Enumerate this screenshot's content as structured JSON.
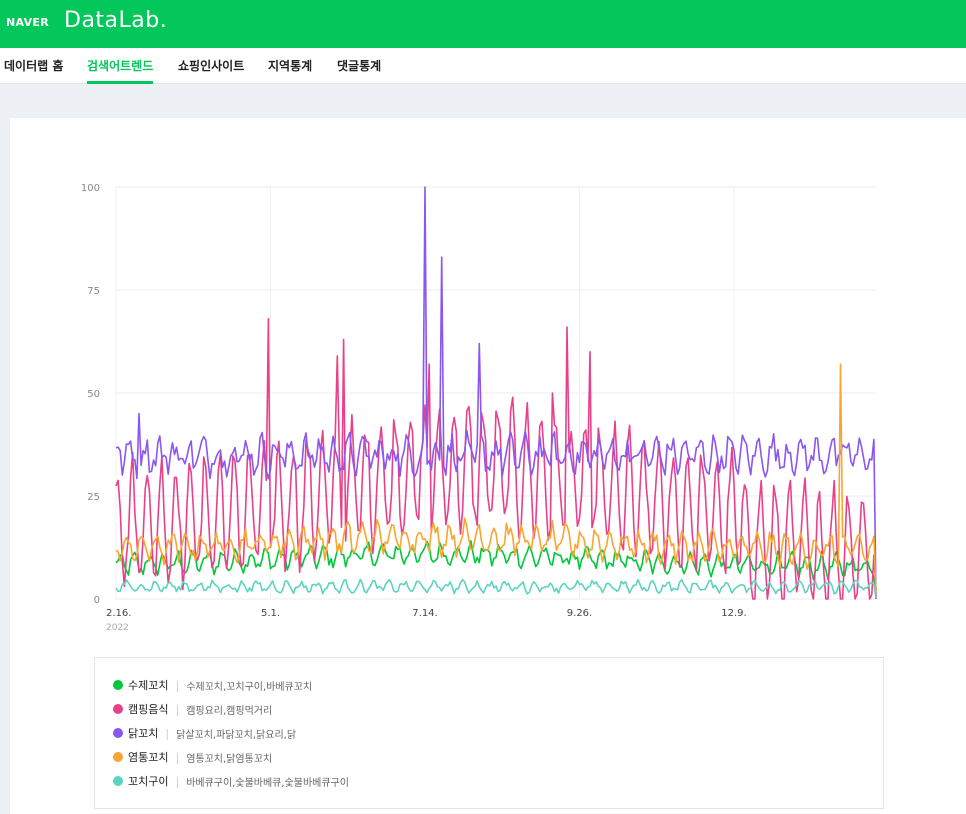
{
  "header": {
    "brand": "NAVER",
    "product": "DataLab."
  },
  "nav": {
    "items": [
      {
        "label": "데이터랩 홈",
        "active": false
      },
      {
        "label": "검색어트렌드",
        "active": true
      },
      {
        "label": "쇼핑인사이트",
        "active": false
      },
      {
        "label": "지역통계",
        "active": false
      },
      {
        "label": "댓글통계",
        "active": false
      }
    ]
  },
  "legend": [
    {
      "name": "수제꼬치",
      "terms": "수제꼬치,꼬치구이,바베큐꼬치",
      "color": "#00c73c"
    },
    {
      "name": "캠핑음식",
      "terms": "캠핑요리,캠핑먹거리",
      "color": "#e9408a"
    },
    {
      "name": "닭꼬치",
      "terms": "닭살꼬치,파닭꼬치,닭요리,닭",
      "color": "#8a57f0"
    },
    {
      "name": "염통꼬치",
      "terms": "염통꼬치,닭염통꼬치",
      "color": "#f8a531"
    },
    {
      "name": "꼬치구이",
      "terms": "바베큐구이,숯불바베큐,숯불바베큐구이",
      "color": "#5cd3c0"
    }
  ],
  "chart_data": {
    "type": "line",
    "ylim": [
      0,
      100
    ],
    "y_ticks": [
      "0",
      "25",
      "50",
      "75",
      "100"
    ],
    "x_ticks": [
      "2.16.",
      "5.1.",
      "7.14.",
      "9.26.",
      "12.9."
    ],
    "x_tick_dates": [
      "2022-02-16",
      "2022-05-01",
      "2022-07-14",
      "2022-09-26",
      "2022-12-09"
    ],
    "x_subtitle": "2022",
    "x_range": [
      "2022-02-16",
      "2023-02-15"
    ],
    "grid": true,
    "series": [
      {
        "name": "수제꼬치",
        "color": "#00c73c",
        "base": 8,
        "amp": 2,
        "noise": 1.5,
        "peaks": [],
        "values": []
      },
      {
        "name": "캠핑음식",
        "color": "#e9408a",
        "base": 22,
        "amp": 14,
        "noise": 4,
        "peaks": [
          {
            "date": "2022-04-30",
            "value": 68
          },
          {
            "date": "2022-06-05",
            "value": 63
          },
          {
            "date": "2022-06-02",
            "value": 59
          },
          {
            "date": "2022-07-16",
            "value": 57
          },
          {
            "date": "2022-09-20",
            "value": 66
          },
          {
            "date": "2022-10-01",
            "value": 60
          },
          {
            "date": "2022-09-13",
            "value": 50
          }
        ]
      },
      {
        "name": "닭꼬치",
        "color": "#8a57f0",
        "base": 35,
        "amp": 3,
        "noise": 3,
        "peaks": [
          {
            "date": "2022-07-14",
            "value": 100
          },
          {
            "date": "2022-07-22",
            "value": 83
          },
          {
            "date": "2022-08-09",
            "value": 62
          },
          {
            "date": "2022-02-27",
            "value": 45
          }
        ]
      },
      {
        "name": "염통꼬치",
        "color": "#f8a531",
        "base": 12,
        "amp": 3,
        "noise": 2,
        "peaks": [
          {
            "date": "2023-01-29",
            "value": 57
          }
        ]
      },
      {
        "name": "꼬치구이",
        "color": "#5cd3c0",
        "base": 3,
        "amp": 1,
        "noise": 0.8,
        "peaks": [],
        "values": []
      }
    ]
  }
}
